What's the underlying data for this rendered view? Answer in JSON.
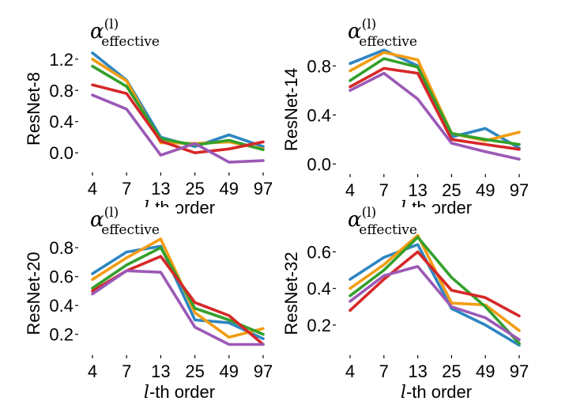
{
  "chart_data": [
    {
      "type": "line",
      "ylabel": "ResNet-8",
      "xlabel_prefix": "l",
      "xlabel_suffix": "-th order",
      "annotation": {
        "symbol": "α",
        "superscript": "(l)",
        "subscript": "effective"
      },
      "categories": [
        "4",
        "7",
        "13",
        "25",
        "49",
        "97"
      ],
      "yticks": [
        "0.0",
        "0.4",
        "0.8",
        "1.2"
      ],
      "ylim": [
        -0.17,
        1.38
      ],
      "series": [
        {
          "color": "#2e86c1",
          "values": [
            1.28,
            0.93,
            0.2,
            0.08,
            0.23,
            0.08
          ]
        },
        {
          "color": "#f39c12",
          "values": [
            1.2,
            0.92,
            0.13,
            0.12,
            0.14,
            0.05
          ]
        },
        {
          "color": "#33a02c",
          "values": [
            1.11,
            0.85,
            0.18,
            0.1,
            0.16,
            0.04
          ]
        },
        {
          "color": "#d62728",
          "values": [
            0.87,
            0.76,
            0.15,
            0.0,
            0.05,
            0.14
          ]
        },
        {
          "color": "#9b59b6",
          "values": [
            0.74,
            0.56,
            -0.03,
            0.12,
            -0.12,
            -0.1
          ]
        }
      ]
    },
    {
      "type": "line",
      "ylabel": "ResNet-14",
      "xlabel_prefix": "l",
      "xlabel_suffix": "-th order",
      "annotation": {
        "symbol": "α",
        "superscript": "(l)",
        "subscript": "effective"
      },
      "categories": [
        "4",
        "7",
        "13",
        "25",
        "49",
        "97"
      ],
      "yticks": [
        "0.0",
        "0.4",
        "0.8"
      ],
      "ylim": [
        -0.03,
        0.97
      ],
      "series": [
        {
          "color": "#2e86c1",
          "values": [
            0.82,
            0.93,
            0.8,
            0.22,
            0.29,
            0.13
          ]
        },
        {
          "color": "#f39c12",
          "values": [
            0.76,
            0.91,
            0.85,
            0.25,
            0.19,
            0.26
          ]
        },
        {
          "color": "#33a02c",
          "values": [
            0.68,
            0.86,
            0.79,
            0.25,
            0.2,
            0.16
          ]
        },
        {
          "color": "#d62728",
          "values": [
            0.63,
            0.78,
            0.74,
            0.2,
            0.16,
            0.12
          ]
        },
        {
          "color": "#9b59b6",
          "values": [
            0.6,
            0.74,
            0.53,
            0.17,
            0.1,
            0.04
          ]
        }
      ]
    },
    {
      "type": "line",
      "ylabel": "ResNet-20",
      "xlabel_prefix": "l",
      "xlabel_suffix": "-th order",
      "annotation": {
        "symbol": "α",
        "superscript": "(l)",
        "subscript": "effective"
      },
      "categories": [
        "4",
        "7",
        "13",
        "25",
        "49",
        "97"
      ],
      "yticks": [
        "0.2",
        "0.4",
        "0.6",
        "0.8"
      ],
      "ylim": [
        0.1,
        0.91
      ],
      "series": [
        {
          "color": "#2e86c1",
          "values": [
            0.62,
            0.77,
            0.81,
            0.3,
            0.28,
            0.17
          ]
        },
        {
          "color": "#f39c12",
          "values": [
            0.58,
            0.73,
            0.86,
            0.35,
            0.18,
            0.24
          ]
        },
        {
          "color": "#33a02c",
          "values": [
            0.52,
            0.68,
            0.8,
            0.38,
            0.3,
            0.2
          ]
        },
        {
          "color": "#d62728",
          "values": [
            0.5,
            0.64,
            0.74,
            0.42,
            0.33,
            0.13
          ]
        },
        {
          "color": "#9b59b6",
          "values": [
            0.48,
            0.64,
            0.63,
            0.25,
            0.13,
            0.13
          ]
        }
      ]
    },
    {
      "type": "line",
      "ylabel": "ResNet-32",
      "xlabel_prefix": "l",
      "xlabel_suffix": "-th order",
      "annotation": {
        "symbol": "α",
        "superscript": "(l)",
        "subscript": "effective"
      },
      "categories": [
        "4",
        "7",
        "13",
        "25",
        "49",
        "97"
      ],
      "yticks": [
        "0.2",
        "0.4",
        "0.6"
      ],
      "ylim": [
        0.07,
        0.71
      ],
      "series": [
        {
          "color": "#2e86c1",
          "values": [
            0.45,
            0.57,
            0.64,
            0.29,
            0.2,
            0.09
          ]
        },
        {
          "color": "#f39c12",
          "values": [
            0.4,
            0.53,
            0.69,
            0.32,
            0.31,
            0.17
          ]
        },
        {
          "color": "#33a02c",
          "values": [
            0.36,
            0.5,
            0.68,
            0.46,
            0.3,
            0.1
          ]
        },
        {
          "color": "#d62728",
          "values": [
            0.28,
            0.45,
            0.6,
            0.39,
            0.35,
            0.25
          ]
        },
        {
          "color": "#9b59b6",
          "values": [
            0.33,
            0.47,
            0.52,
            0.3,
            0.24,
            0.12
          ]
        }
      ]
    }
  ]
}
